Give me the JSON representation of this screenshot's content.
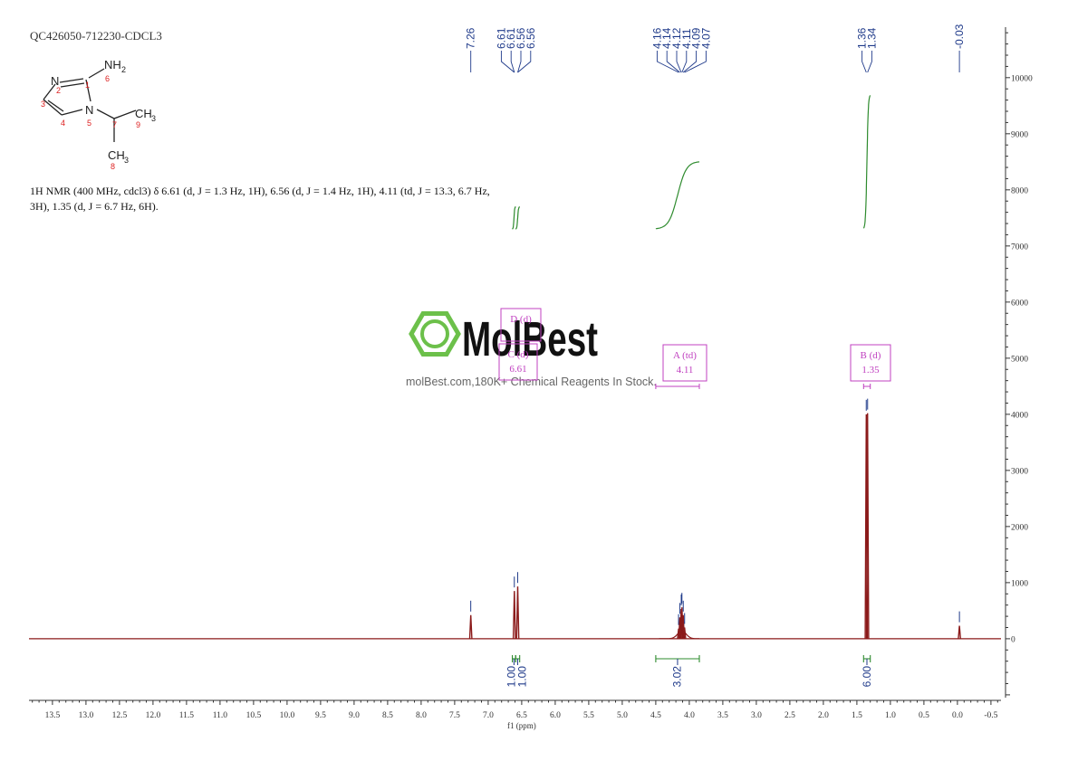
{
  "sample_title": "QC426050-712230-CDCL3",
  "structure": {
    "atoms": [
      "N",
      "NH",
      "2",
      "N",
      "CH",
      "3",
      "CH",
      "3"
    ],
    "locants": [
      "1",
      "2",
      "3",
      "4",
      "5",
      "6",
      "7",
      "8",
      "9"
    ]
  },
  "nmr_text": {
    "line1": "1H NMR (400 MHz, cdcl3) δ 6.61 (d, J = 1.3 Hz, 1H), 6.56 (d, J = 1.4 Hz, 1H), 4.11 (td, J = 13.3, 6.7 Hz,",
    "line2": "3H), 1.35 (d, J = 6.7 Hz, 6H)."
  },
  "watermark": {
    "brand": "MolBest",
    "tagline": "molBest.com,180K+ Chemical Reagents In Stock."
  },
  "colors": {
    "spectrum": "#8b1a1a",
    "peak_labels": "#1f3a8a",
    "integrals": "#2e8b2e",
    "multiplets": "#c040c0",
    "watermark_green": "#6cc04a"
  },
  "chart_data": {
    "type": "line",
    "x_axis": {
      "label": "f1 (ppm)",
      "reversed": true,
      "range": [
        13.85,
        -0.65
      ],
      "ticks": [
        13.5,
        13.0,
        12.5,
        12.0,
        11.5,
        11.0,
        10.5,
        10.0,
        9.5,
        9.0,
        8.5,
        8.0,
        7.5,
        7.0,
        6.5,
        6.0,
        5.5,
        5.0,
        4.5,
        4.0,
        3.5,
        3.0,
        2.5,
        2.0,
        1.5,
        1.0,
        0.5,
        0.0,
        -0.5
      ],
      "tick_labels": [
        "13.5",
        "13.0",
        "12.5",
        "12.0",
        "11.5",
        "11.0",
        "10.5",
        "10.0",
        "9.5",
        "9.0",
        "8.5",
        "8.0",
        "7.5",
        "7.0",
        "6.5",
        "6.0",
        "5.5",
        "5.0",
        "4.5",
        "4.0",
        "3.5",
        "3.0",
        "2.5",
        "2.0",
        "1.5",
        "1.0",
        "0.5",
        "0.0",
        "-0.5"
      ]
    },
    "y_axis": {
      "side": "right",
      "range": [
        -1050,
        10900
      ],
      "ticks": [
        0,
        1000,
        2000,
        3000,
        4000,
        5000,
        6000,
        7000,
        8000,
        9000,
        10000
      ],
      "tick_labels": [
        "0",
        "1000",
        "2000",
        "3000",
        "4000",
        "5000",
        "6000",
        "7000",
        "8000",
        "9000",
        "10000"
      ]
    },
    "peaks": [
      {
        "ppm": 7.26,
        "height": 420
      },
      {
        "ppm": 6.61,
        "height": 850
      },
      {
        "ppm": 6.56,
        "height": 930
      },
      {
        "ppm": 4.16,
        "height": 180
      },
      {
        "ppm": 4.14,
        "height": 380
      },
      {
        "ppm": 4.12,
        "height": 530
      },
      {
        "ppm": 4.11,
        "height": 560
      },
      {
        "ppm": 4.09,
        "height": 420
      },
      {
        "ppm": 4.07,
        "height": 200
      },
      {
        "ppm": 1.36,
        "height": 4000
      },
      {
        "ppm": 1.34,
        "height": 4020
      },
      {
        "ppm": -0.03,
        "height": 230
      }
    ],
    "peak_labels": [
      {
        "group": "single",
        "labels": [
          "7.26"
        ],
        "ppm": [
          7.26
        ]
      },
      {
        "group": "aromatic",
        "labels": [
          "6.61",
          "6.61",
          "6.56",
          "6.56"
        ],
        "ppm": [
          6.61,
          6.61,
          6.56,
          6.56
        ]
      },
      {
        "group": "ch",
        "labels": [
          "4.16",
          "4.14",
          "4.12",
          "4.11",
          "4.09",
          "4.07"
        ],
        "ppm": [
          4.16,
          4.14,
          4.12,
          4.11,
          4.09,
          4.07
        ]
      },
      {
        "group": "methyl",
        "labels": [
          "1.36",
          "1.34"
        ],
        "ppm": [
          1.36,
          1.34
        ]
      },
      {
        "group": "tms",
        "labels": [
          "-0.03"
        ],
        "ppm": [
          -0.03
        ]
      }
    ],
    "multiplets": [
      {
        "name": "D (d)",
        "value": "",
        "ppm": 6.56
      },
      {
        "name": "C (d)",
        "value": "6.61",
        "ppm": 6.61
      },
      {
        "name": "A (td)",
        "value": "4.11",
        "ppm": 4.11,
        "range": [
          4.5,
          3.85
        ]
      },
      {
        "name": "B (d)",
        "value": "1.35",
        "ppm": 1.35,
        "range": [
          1.4,
          1.3
        ]
      }
    ],
    "integrals": [
      {
        "label": "1.00",
        "from": 6.64,
        "to": 6.59
      },
      {
        "label": "1.00",
        "from": 6.59,
        "to": 6.53
      },
      {
        "label": "3.02",
        "from": 4.5,
        "to": 3.85
      },
      {
        "label": "6.00",
        "from": 1.4,
        "to": 1.3
      }
    ]
  }
}
